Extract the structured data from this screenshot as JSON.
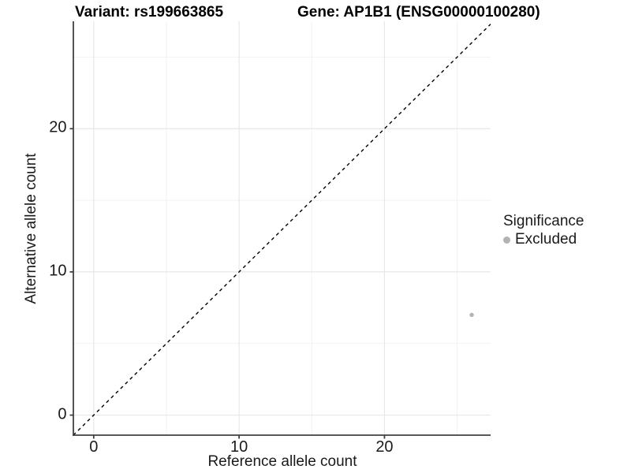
{
  "chart_data": {
    "type": "scatter",
    "title_left": "Variant: rs199663865",
    "title_right": "Gene: AP1B1 (ENSG00000100280)",
    "xlabel": "Reference allele count",
    "ylabel": "Alternative allele count",
    "x_ticks": [
      0,
      10,
      20
    ],
    "y_ticks": [
      0,
      10,
      20
    ],
    "x_minor_ticks": [
      5,
      15,
      25
    ],
    "y_minor_ticks": [
      5,
      15,
      25
    ],
    "xlim": [
      -1.4,
      27.3
    ],
    "ylim": [
      -1.4,
      27.5
    ],
    "grid": "major+minor",
    "points": [
      {
        "x": 26,
        "y": 7,
        "significance": "Excluded"
      }
    ],
    "identity_line": {
      "slope": 1,
      "intercept": 0,
      "style": "dashed",
      "color": "#000000"
    },
    "legend": {
      "title": "Significance",
      "position": "right",
      "items": [
        {
          "label": "Excluded",
          "color": "#b3b3b3"
        }
      ]
    },
    "style": {
      "grid_major_color": "#e7e7e7",
      "grid_minor_color": "#f2f2f2",
      "axis_line_color": "#404040",
      "point_color": "#b3b3b3",
      "point_radius": 2.7,
      "legend_key_radius": 4.5,
      "text_color": "#1a1a1a"
    }
  }
}
